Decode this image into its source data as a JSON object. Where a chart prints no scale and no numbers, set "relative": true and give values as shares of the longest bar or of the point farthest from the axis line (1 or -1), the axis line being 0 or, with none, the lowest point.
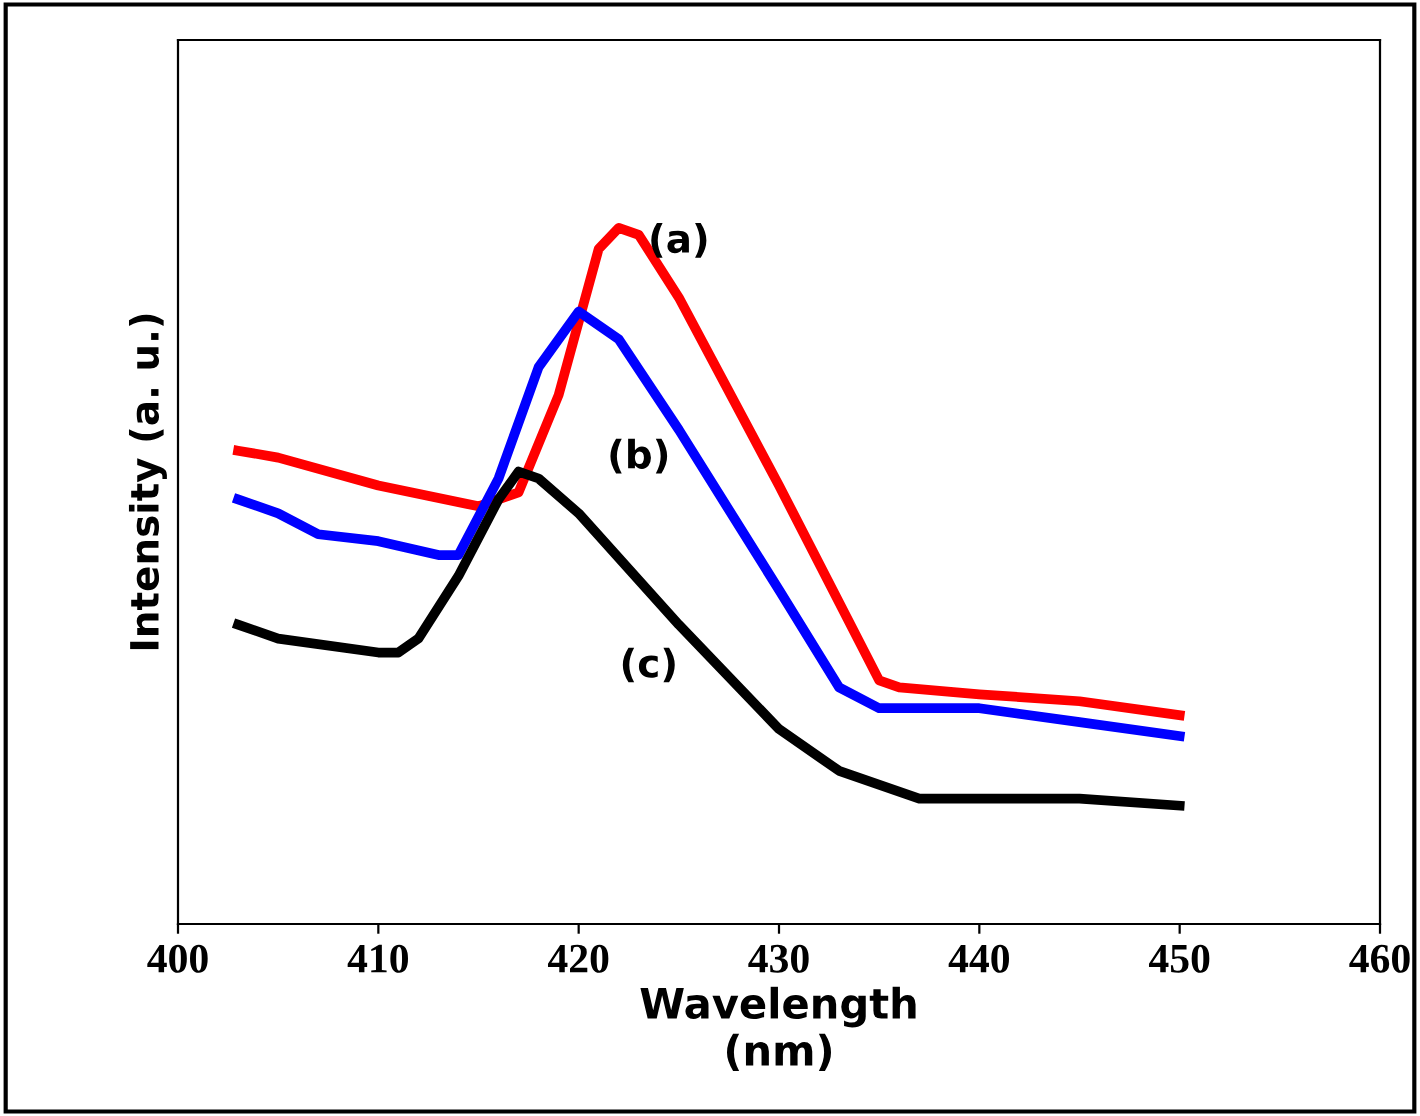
{
  "chart_data": {
    "type": "line",
    "relative": true,
    "xlabel": "Wavelength\n(nm)",
    "ylabel": "Intensity (a. u.)",
    "xlim": [
      400,
      460
    ],
    "xticks": [
      400,
      410,
      420,
      430,
      440,
      450,
      460
    ],
    "grid": false,
    "tick_labels": "x",
    "series": [
      {
        "name": "(a)",
        "color": "#ff0000",
        "x": [
          403,
          405,
          410,
          415,
          417,
          419,
          421,
          422,
          423,
          425,
          430,
          435,
          436,
          440,
          445,
          450
        ],
        "values": [
          0.68,
          0.67,
          0.63,
          0.6,
          0.62,
          0.76,
          0.97,
          1.0,
          0.99,
          0.9,
          0.63,
          0.35,
          0.34,
          0.33,
          0.32,
          0.3
        ]
      },
      {
        "name": "(b)",
        "color": "#0000ff",
        "x": [
          403,
          405,
          407,
          410,
          413,
          414,
          416,
          418,
          420,
          422,
          425,
          430,
          433,
          435,
          440,
          445,
          450
        ],
        "values": [
          0.61,
          0.59,
          0.56,
          0.55,
          0.53,
          0.53,
          0.64,
          0.8,
          0.88,
          0.84,
          0.71,
          0.48,
          0.34,
          0.31,
          0.31,
          0.29,
          0.27
        ]
      },
      {
        "name": "(c)",
        "color": "#000000",
        "x": [
          403,
          405,
          410,
          411,
          412,
          414,
          416,
          417,
          418,
          420,
          425,
          430,
          433,
          437,
          440,
          445,
          450
        ],
        "values": [
          0.43,
          0.41,
          0.39,
          0.39,
          0.41,
          0.5,
          0.61,
          0.65,
          0.64,
          0.59,
          0.43,
          0.28,
          0.22,
          0.18,
          0.18,
          0.18,
          0.17
        ]
      }
    ]
  }
}
